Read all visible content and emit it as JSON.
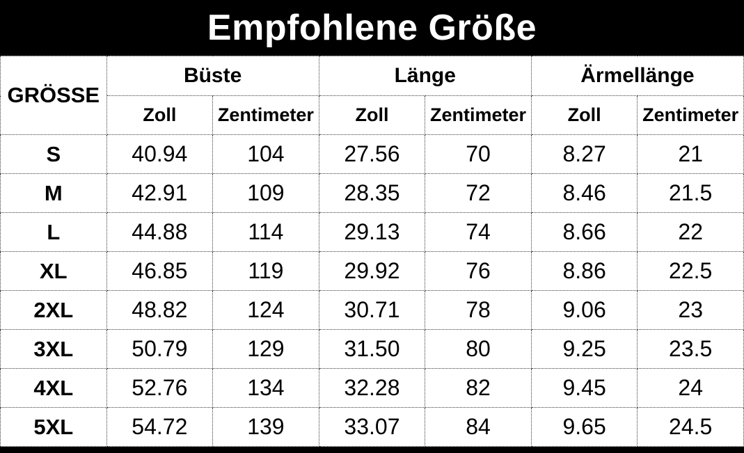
{
  "title": "Empfohlene Größe",
  "table": {
    "size_header": "GRÖSSE",
    "groups": [
      {
        "label": "Büste"
      },
      {
        "label": "Länge"
      },
      {
        "label": "Ärmellänge"
      }
    ],
    "unit_headers": [
      "Zoll",
      "Zentimeter"
    ],
    "rows": [
      {
        "size": "S",
        "values": [
          "40.94",
          "104",
          "27.56",
          "70",
          "8.27",
          "21"
        ]
      },
      {
        "size": "M",
        "values": [
          "42.91",
          "109",
          "28.35",
          "72",
          "8.46",
          "21.5"
        ]
      },
      {
        "size": "L",
        "values": [
          "44.88",
          "114",
          "29.13",
          "74",
          "8.66",
          "22"
        ]
      },
      {
        "size": "XL",
        "values": [
          "46.85",
          "119",
          "29.92",
          "76",
          "8.86",
          "22.5"
        ]
      },
      {
        "size": "2XL",
        "values": [
          "48.82",
          "124",
          "30.71",
          "78",
          "9.06",
          "23"
        ]
      },
      {
        "size": "3XL",
        "values": [
          "50.79",
          "129",
          "31.50",
          "80",
          "9.25",
          "23.5"
        ]
      },
      {
        "size": "4XL",
        "values": [
          "52.76",
          "134",
          "32.28",
          "82",
          "9.45",
          "24"
        ]
      },
      {
        "size": "5XL",
        "values": [
          "54.72",
          "139",
          "33.07",
          "84",
          "9.65",
          "24.5"
        ]
      }
    ]
  },
  "colors": {
    "title_bar_bg": "#000000",
    "title_text": "#ffffff",
    "table_bg": "#ffffff",
    "border": "#3a3a3a",
    "bottom_bar_bg": "#000000"
  }
}
